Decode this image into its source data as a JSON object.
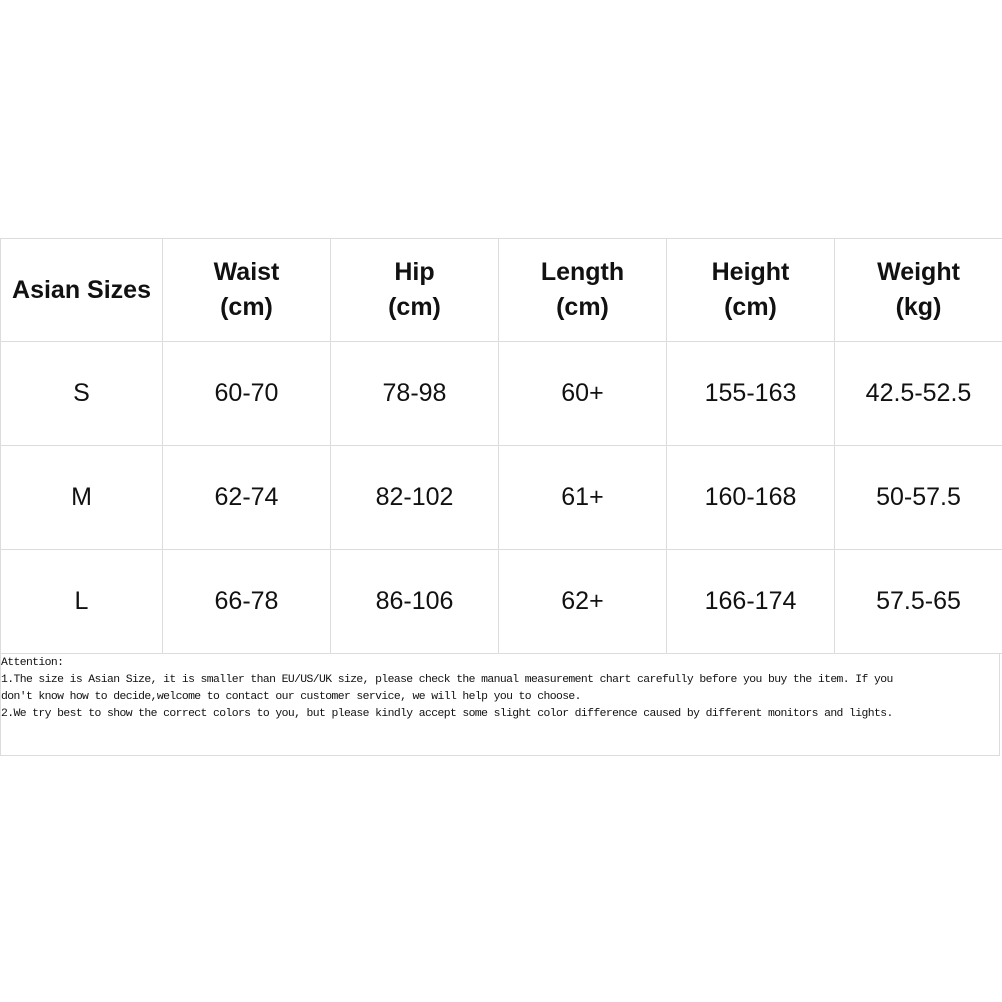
{
  "table": {
    "headers": [
      [
        "Asian Sizes",
        ""
      ],
      [
        "Waist",
        "(cm)"
      ],
      [
        "Hip",
        "(cm)"
      ],
      [
        "Length",
        "(cm)"
      ],
      [
        "Height",
        "(cm)"
      ],
      [
        "Weight",
        "(kg)"
      ]
    ],
    "rows": [
      [
        "S",
        "60-70",
        "78-98",
        "60+",
        "155-163",
        "42.5-52.5"
      ],
      [
        "M",
        "62-74",
        "82-102",
        "61+",
        "160-168",
        "50-57.5"
      ],
      [
        "L",
        "66-78",
        "86-106",
        "62+",
        "166-174",
        "57.5-65"
      ]
    ]
  },
  "notes": {
    "lines": [
      "Attention:",
      "1.The size is Asian Size, it is smaller than EU/US/UK size, please check the manual measurement chart carefully before you buy the item. If you",
      "don't know how to decide,welcome to contact our customer service, we will help you to choose.",
      "2.We try best to show the correct colors to you, but please kindly accept some slight color difference caused by different monitors and lights."
    ]
  }
}
